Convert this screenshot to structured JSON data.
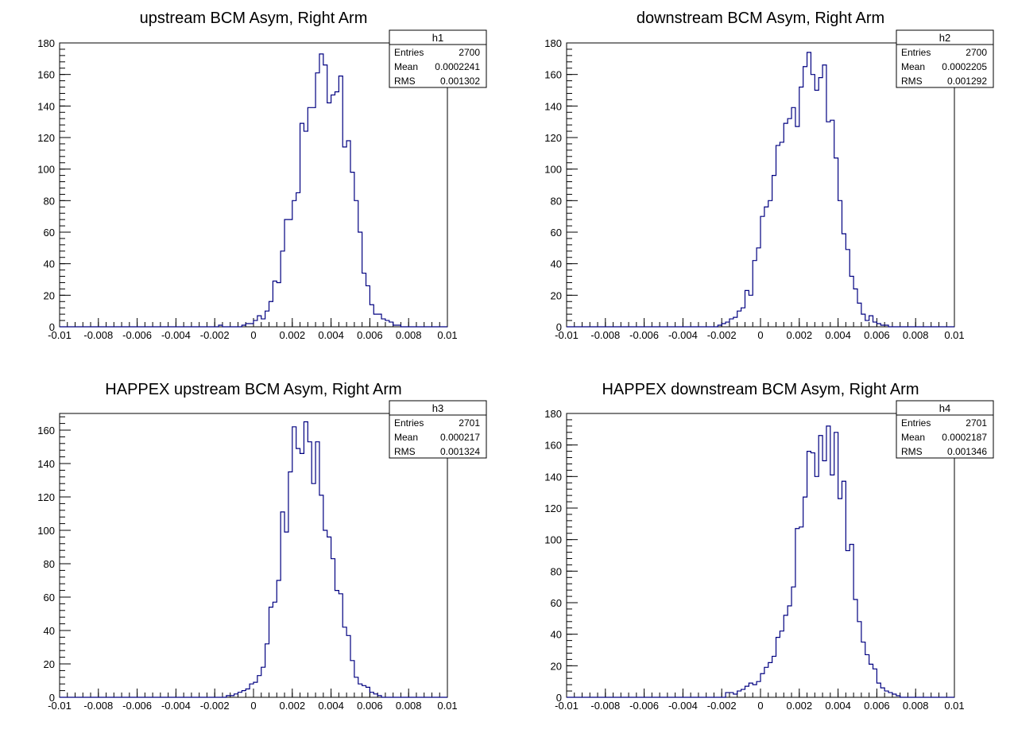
{
  "canvas": {
    "background": "#ffffff",
    "line_color": "#000080",
    "axis_color": "#000000"
  },
  "chart_data": [
    {
      "type": "bar",
      "id": "h1",
      "title": "upstream BCM Asym, Right Arm",
      "xlim": [
        -0.01,
        0.01
      ],
      "ylim": [
        0,
        180
      ],
      "x_ticks": [
        -0.01,
        -0.008,
        -0.006,
        -0.004,
        -0.002,
        0,
        0.002,
        0.004,
        0.006,
        0.008,
        0.01
      ],
      "x_tick_labels": [
        "-0.01",
        "-0.008",
        "-0.006",
        "-0.004",
        "-0.002",
        "0",
        "0.002",
        "0.004",
        "0.006",
        "0.008",
        "0.01"
      ],
      "y_ticks": [
        0,
        20,
        40,
        60,
        80,
        100,
        120,
        140,
        160,
        180
      ],
      "y_tick_labels": [
        "0",
        "20",
        "40",
        "60",
        "80",
        "100",
        "120",
        "140",
        "160",
        "180"
      ],
      "bin_range": [
        -0.01,
        0.01
      ],
      "bin_count": 100,
      "values": [
        0,
        0,
        0,
        0,
        0,
        0,
        0,
        0,
        0,
        0,
        0,
        0,
        0,
        0,
        0,
        0,
        0,
        0,
        0,
        0,
        0,
        0,
        0,
        0,
        0,
        0,
        0,
        0,
        0,
        0,
        0,
        0,
        0,
        0,
        0,
        0,
        0,
        0,
        0,
        0,
        0,
        1,
        0,
        0,
        0,
        0,
        0,
        1,
        2,
        2,
        4,
        7,
        5,
        10,
        16,
        29,
        28,
        48,
        68,
        68,
        80,
        85,
        129,
        124,
        139,
        139,
        161,
        173,
        166,
        142,
        147,
        149,
        159,
        114,
        118,
        98,
        80,
        60,
        34,
        26,
        14,
        8,
        8,
        5,
        4,
        3,
        1,
        1,
        0,
        0,
        0,
        0,
        0,
        0,
        0,
        0,
        0,
        0,
        0,
        0
      ],
      "stats": {
        "name": "h1",
        "rows": [
          {
            "label": "Entries",
            "value": "2700"
          },
          {
            "label": "Mean",
            "value": "0.0002241"
          },
          {
            "label": "RMS",
            "value": "0.001302"
          }
        ]
      }
    },
    {
      "type": "bar",
      "id": "h2",
      "title": "downstream BCM Asym, Right Arm",
      "xlim": [
        -0.01,
        0.01
      ],
      "ylim": [
        0,
        180
      ],
      "x_ticks": [
        -0.01,
        -0.008,
        -0.006,
        -0.004,
        -0.002,
        0,
        0.002,
        0.004,
        0.006,
        0.008,
        0.01
      ],
      "x_tick_labels": [
        "-0.01",
        "-0.008",
        "-0.006",
        "-0.004",
        "-0.002",
        "0",
        "0.002",
        "0.004",
        "0.006",
        "0.008",
        "0.01"
      ],
      "y_ticks": [
        0,
        20,
        40,
        60,
        80,
        100,
        120,
        140,
        160,
        180
      ],
      "y_tick_labels": [
        "0",
        "20",
        "40",
        "60",
        "80",
        "100",
        "120",
        "140",
        "160",
        "180"
      ],
      "bin_range": [
        -0.01,
        0.01
      ],
      "bin_count": 100,
      "values": [
        0,
        0,
        0,
        0,
        0,
        0,
        0,
        0,
        0,
        0,
        0,
        0,
        0,
        0,
        0,
        0,
        0,
        0,
        0,
        0,
        0,
        0,
        0,
        0,
        0,
        0,
        0,
        0,
        0,
        0,
        0,
        0,
        0,
        0,
        0,
        0,
        0,
        0,
        0,
        1,
        2,
        3,
        5,
        6,
        10,
        12,
        23,
        20,
        42,
        50,
        70,
        76,
        80,
        96,
        115,
        117,
        129,
        132,
        139,
        127,
        152,
        165,
        174,
        160,
        150,
        158,
        166,
        130,
        131,
        107,
        80,
        59,
        49,
        32,
        24,
        15,
        8,
        4,
        7,
        3,
        2,
        1,
        1,
        0,
        0,
        0,
        0,
        0,
        0,
        0,
        0,
        0,
        0,
        0,
        0,
        0,
        0,
        0,
        0,
        0
      ],
      "stats": {
        "name": "h2",
        "rows": [
          {
            "label": "Entries",
            "value": "2700"
          },
          {
            "label": "Mean",
            "value": "0.0002205"
          },
          {
            "label": "RMS",
            "value": "0.001292"
          }
        ]
      }
    },
    {
      "type": "bar",
      "id": "h3",
      "title": "HAPPEX upstream BCM Asym, Right Arm",
      "xlim": [
        -0.01,
        0.01
      ],
      "ylim": [
        0,
        170
      ],
      "x_ticks": [
        -0.01,
        -0.008,
        -0.006,
        -0.004,
        -0.002,
        0,
        0.002,
        0.004,
        0.006,
        0.008,
        0.01
      ],
      "x_tick_labels": [
        "-0.01",
        "-0.008",
        "-0.006",
        "-0.004",
        "-0.002",
        "0",
        "0.002",
        "0.004",
        "0.006",
        "0.008",
        "0.01"
      ],
      "y_ticks": [
        0,
        20,
        40,
        60,
        80,
        100,
        120,
        140,
        160
      ],
      "y_tick_labels": [
        "0",
        "20",
        "40",
        "60",
        "80",
        "100",
        "120",
        "140",
        "160"
      ],
      "bin_range": [
        -0.01,
        0.01
      ],
      "bin_count": 100,
      "values": [
        0,
        0,
        0,
        0,
        0,
        0,
        0,
        0,
        0,
        0,
        0,
        0,
        0,
        0,
        0,
        0,
        0,
        0,
        0,
        0,
        0,
        0,
        0,
        0,
        0,
        0,
        0,
        0,
        0,
        0,
        0,
        0,
        0,
        0,
        0,
        0,
        0,
        0,
        0,
        0,
        0,
        0,
        0,
        1,
        1,
        2,
        3,
        4,
        5,
        8,
        9,
        13,
        18,
        32,
        54,
        57,
        70,
        111,
        99,
        135,
        162,
        149,
        146,
        165,
        153,
        128,
        153,
        121,
        100,
        96,
        83,
        64,
        62,
        42,
        37,
        22,
        12,
        8,
        7,
        6,
        3,
        2,
        1,
        0,
        0,
        0,
        0,
        0,
        0,
        0,
        0,
        0,
        0,
        0,
        0,
        0,
        0,
        0,
        0,
        0
      ],
      "stats": {
        "name": "h3",
        "rows": [
          {
            "label": "Entries",
            "value": "2701"
          },
          {
            "label": "Mean",
            "value": "0.000217"
          },
          {
            "label": "RMS",
            "value": "0.001324"
          }
        ]
      }
    },
    {
      "type": "bar",
      "id": "h4",
      "title": "HAPPEX downstream BCM Asym, Right Arm",
      "xlim": [
        -0.01,
        0.01
      ],
      "ylim": [
        0,
        180
      ],
      "x_ticks": [
        -0.01,
        -0.008,
        -0.006,
        -0.004,
        -0.002,
        0,
        0.002,
        0.004,
        0.006,
        0.008,
        0.01
      ],
      "x_tick_labels": [
        "-0.01",
        "-0.008",
        "-0.006",
        "-0.004",
        "-0.002",
        "0",
        "0.002",
        "0.004",
        "0.006",
        "0.008",
        "0.01"
      ],
      "y_ticks": [
        0,
        20,
        40,
        60,
        80,
        100,
        120,
        140,
        160,
        180
      ],
      "y_tick_labels": [
        "0",
        "20",
        "40",
        "60",
        "80",
        "100",
        "120",
        "140",
        "160",
        "180"
      ],
      "bin_range": [
        -0.01,
        0.01
      ],
      "bin_count": 100,
      "values": [
        0,
        0,
        0,
        0,
        0,
        0,
        0,
        0,
        0,
        0,
        0,
        0,
        0,
        0,
        0,
        0,
        0,
        0,
        0,
        0,
        0,
        0,
        0,
        0,
        0,
        0,
        0,
        0,
        0,
        0,
        0,
        0,
        0,
        0,
        0,
        0,
        0,
        0,
        0,
        0,
        0,
        3,
        3,
        2,
        4,
        5,
        7,
        9,
        8,
        10,
        15,
        19,
        22,
        26,
        38,
        42,
        52,
        58,
        70,
        107,
        108,
        127,
        156,
        155,
        140,
        166,
        150,
        172,
        141,
        168,
        126,
        137,
        93,
        97,
        62,
        48,
        35,
        27,
        21,
        18,
        9,
        6,
        4,
        3,
        2,
        1,
        0,
        0,
        0,
        0,
        0,
        0,
        0,
        0,
        0,
        0,
        0,
        0,
        0,
        0
      ],
      "stats": {
        "name": "h4",
        "rows": [
          {
            "label": "Entries",
            "value": "2701"
          },
          {
            "label": "Mean",
            "value": "0.0002187"
          },
          {
            "label": "RMS",
            "value": "0.001346"
          }
        ]
      }
    }
  ]
}
